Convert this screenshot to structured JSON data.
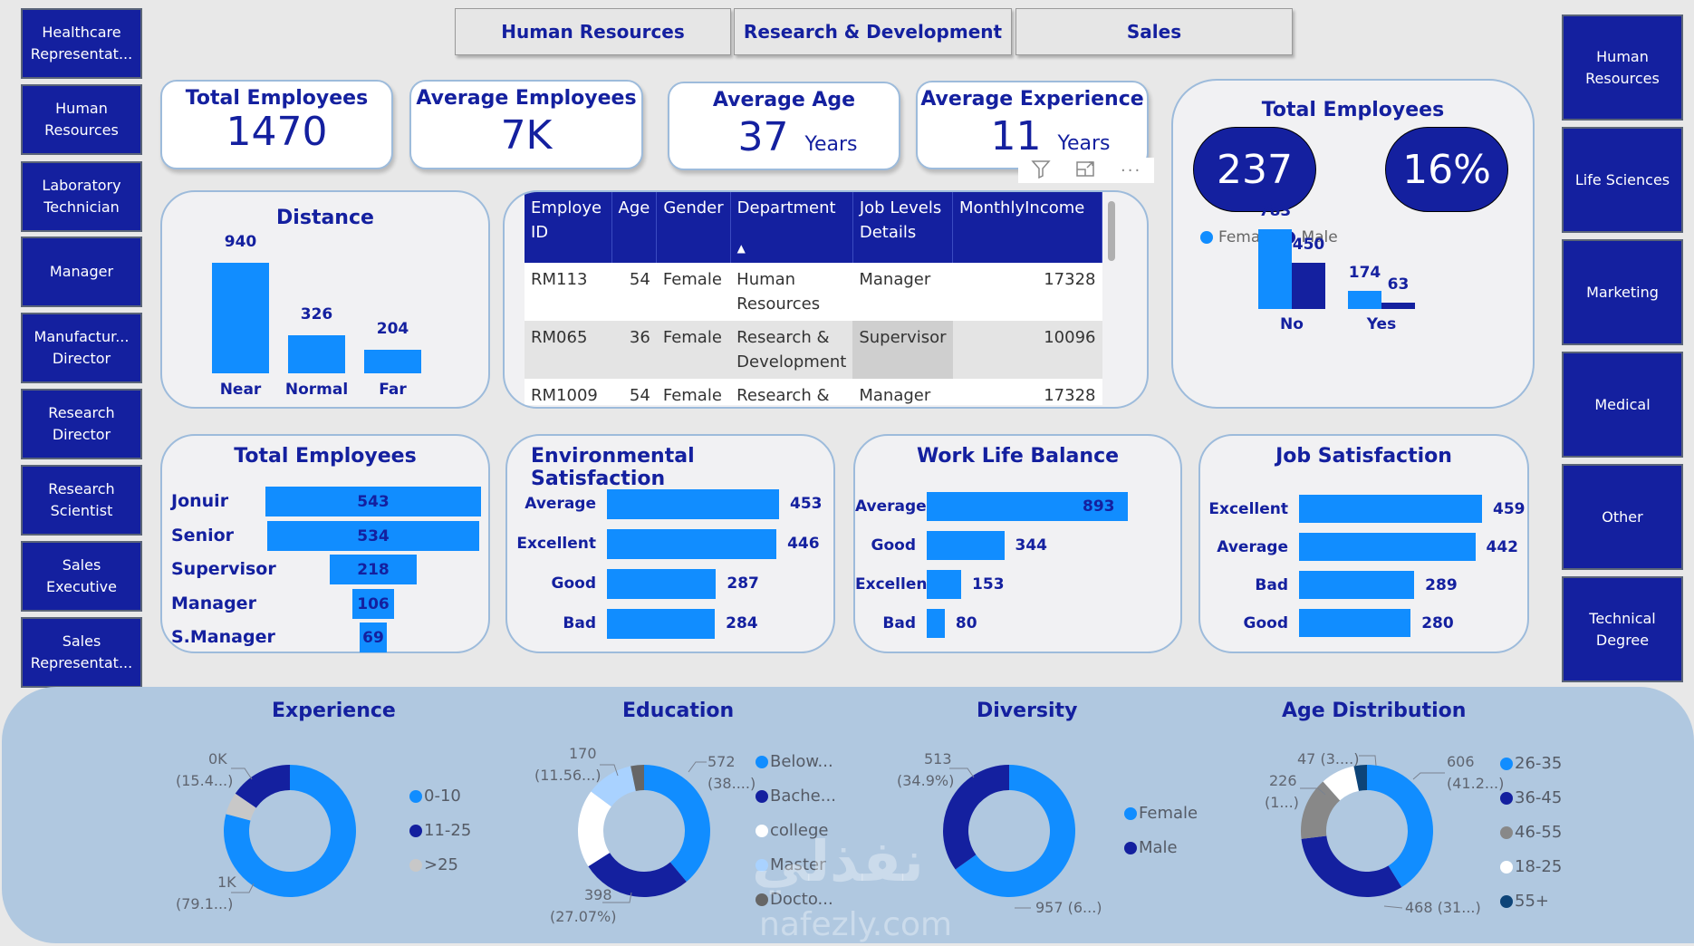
{
  "left_nav": {
    "items": [
      {
        "label": "Healthcare Representat..."
      },
      {
        "label": "Human Resources"
      },
      {
        "label": "Laboratory Technician"
      },
      {
        "label": "Manager"
      },
      {
        "label": "Manufactur... Director"
      },
      {
        "label": "Research Director"
      },
      {
        "label": "Research Scientist"
      },
      {
        "label": "Sales Executive"
      },
      {
        "label": "Sales Representat..."
      }
    ]
  },
  "right_nav": {
    "items": [
      {
        "label": "Human Resources"
      },
      {
        "label": "Life Sciences"
      },
      {
        "label": "Marketing"
      },
      {
        "label": "Medical"
      },
      {
        "label": "Other"
      },
      {
        "label": "Technical Degree"
      }
    ]
  },
  "tabs": [
    {
      "label": "Human Resources"
    },
    {
      "label": "Research & Development"
    },
    {
      "label": "Sales"
    }
  ],
  "kpis": {
    "total_employees": {
      "title": "Total Employees",
      "value": "1470"
    },
    "average_employees": {
      "title": "Average Employees",
      "value": "7K"
    },
    "average_age": {
      "title": "Average Age",
      "value": "37",
      "unit": "Years"
    },
    "average_experience": {
      "title": "Average Experience",
      "value": "11",
      "unit": "Years"
    }
  },
  "visual_header_icons": [
    "filter-icon",
    "focus-mode-icon",
    "more-options-icon"
  ],
  "table": {
    "columns": [
      "Employe ID",
      "Age",
      "Gender",
      "Department",
      "Job Levels Details",
      "MonthlyIncome"
    ],
    "sort_indicator": "▲",
    "rows": [
      [
        "RM113",
        "54",
        "Female",
        "Human Resources",
        "Manager",
        "17328"
      ],
      [
        "RM065",
        "36",
        "Female",
        "Research & Development",
        "Supervisor",
        "10096"
      ],
      [
        "RM1009",
        "54",
        "Female",
        "Research &",
        "Manager",
        "17328"
      ]
    ]
  },
  "attrition_card": {
    "title": "Total Employees",
    "badge_count": "237",
    "badge_percent": "16%"
  },
  "colors": {
    "primary_dark": "#14209f",
    "primary_light": "#118dff",
    "bg": "#e8e8e8",
    "bottom_band": "#b0c8e0"
  },
  "chart_data": [
    {
      "id": "distance",
      "type": "bar",
      "title": "Distance",
      "categories": [
        "Near",
        "Normal",
        "Far"
      ],
      "values": [
        940,
        326,
        204
      ]
    },
    {
      "id": "attrition",
      "type": "bar",
      "title": "Total Employees",
      "categories": [
        "No",
        "Yes"
      ],
      "legend": [
        "Female",
        "Male"
      ],
      "series": [
        {
          "name": "Female",
          "values": [
            783,
            174
          ]
        },
        {
          "name": "Male",
          "values": [
            450,
            63
          ]
        }
      ],
      "legend_position": "top-left"
    },
    {
      "id": "job_levels",
      "type": "bar",
      "orientation": "funnel",
      "title": "Total Employees",
      "categories": [
        "Jonuir",
        "Senior",
        "Supervisor",
        "Manager",
        "S.Manager"
      ],
      "values": [
        543,
        534,
        218,
        106,
        69
      ]
    },
    {
      "id": "env_satisfaction",
      "type": "bar",
      "orientation": "horizontal",
      "title": "Environmental Satisfaction",
      "categories": [
        "Average",
        "Excellent",
        "Good",
        "Bad"
      ],
      "values": [
        453,
        446,
        287,
        284
      ]
    },
    {
      "id": "work_life_balance",
      "type": "bar",
      "orientation": "horizontal",
      "title": "Work Life Balance",
      "categories": [
        "Average",
        "Good",
        "Excellent",
        "Bad"
      ],
      "values": [
        893,
        344,
        153,
        80
      ]
    },
    {
      "id": "job_satisfaction",
      "type": "bar",
      "orientation": "horizontal",
      "title": "Job Satisfaction",
      "categories": [
        "Excellent",
        "Average",
        "Bad",
        "Good"
      ],
      "values": [
        459,
        442,
        289,
        280
      ]
    },
    {
      "id": "experience",
      "type": "pie",
      "donut": true,
      "title": "Experience",
      "categories": [
        "0-10",
        ">25",
        "11-25"
      ],
      "values": [
        1163,
        80,
        227
      ],
      "slice_colors": [
        "#118dff",
        "#c8c8c8",
        "#14209f"
      ],
      "data_labels": [
        {
          "text": "1K",
          "sub": "(79.1...)"
        },
        {
          "text": "0K",
          "sub": "(15.4...)"
        }
      ],
      "legend": [
        {
          "label": "0-10",
          "color": "#118dff"
        },
        {
          "label": "11-25",
          "color": "#14209f"
        },
        {
          "label": ">25",
          "color": "#c8c8c8"
        }
      ],
      "legend_position": "right"
    },
    {
      "id": "education",
      "type": "pie",
      "donut": true,
      "title": "Education",
      "categories": [
        "Below...",
        "Bache...",
        "college",
        "Master",
        "Docto..."
      ],
      "values": [
        572,
        398,
        282,
        170,
        48
      ],
      "slice_colors": [
        "#118dff",
        "#14209f",
        "#ffffff",
        "#a9d2ff",
        "#666666"
      ],
      "data_labels": [
        {
          "text": "572",
          "sub": "(38....)"
        },
        {
          "text": "398",
          "sub": "(27.07%)"
        },
        {
          "text": "170",
          "sub": "(11.56...)"
        }
      ],
      "legend": [
        {
          "label": "Below...",
          "color": "#118dff"
        },
        {
          "label": "Bache...",
          "color": "#14209f"
        },
        {
          "label": "college",
          "color": "#ffffff"
        },
        {
          "label": "Master",
          "color": "#a9d2ff"
        },
        {
          "label": "Docto...",
          "color": "#666666"
        }
      ],
      "legend_position": "right"
    },
    {
      "id": "diversity",
      "type": "pie",
      "donut": true,
      "title": "Diversity",
      "categories": [
        "Female",
        "Male"
      ],
      "values": [
        957,
        513
      ],
      "slice_colors": [
        "#118dff",
        "#14209f"
      ],
      "data_labels": [
        {
          "text": "957 (6...)"
        },
        {
          "text": "513",
          "sub": "(34.9%)"
        }
      ],
      "legend": [
        {
          "label": "Female",
          "color": "#118dff"
        },
        {
          "label": "Male",
          "color": "#14209f"
        }
      ],
      "legend_position": "right"
    },
    {
      "id": "age_distribution",
      "type": "pie",
      "donut": true,
      "title": "Age Distribution",
      "categories": [
        "26-35",
        "36-45",
        "46-55",
        "18-25",
        "55+"
      ],
      "values": [
        606,
        468,
        226,
        123,
        47
      ],
      "slice_colors": [
        "#118dff",
        "#14209f",
        "#888888",
        "#ffffff",
        "#0d4478"
      ],
      "data_labels": [
        {
          "text": "606",
          "sub": "(41.2...)"
        },
        {
          "text": "468 (31...)"
        },
        {
          "text": "226",
          "sub": "(1...)"
        },
        {
          "text": "47 (3....)"
        }
      ],
      "legend": [
        {
          "label": "26-35",
          "color": "#118dff"
        },
        {
          "label": "36-45",
          "color": "#14209f"
        },
        {
          "label": "46-55",
          "color": "#888888"
        },
        {
          "label": "18-25",
          "color": "#ffffff"
        },
        {
          "label": "55+",
          "color": "#0d4478"
        }
      ],
      "legend_position": "right"
    }
  ],
  "watermark": {
    "arabic": "نفذلي",
    "latin": "nafezly.com"
  }
}
